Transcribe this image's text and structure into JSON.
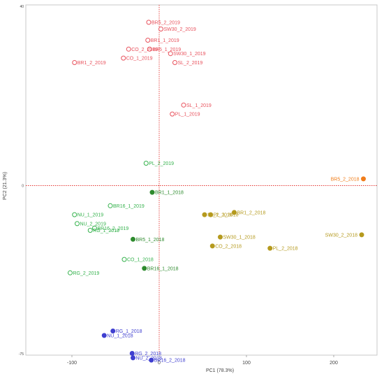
{
  "chart_data": {
    "type": "scatter",
    "title": "",
    "xlabel": "PC1 (78.3%)",
    "ylabel": "PC2 (21.3%)",
    "xlim": [
      -150,
      250
    ],
    "ylim": [
      -75,
      40
    ],
    "xticks": [
      "-100",
      "0",
      "100",
      "200"
    ],
    "yticks": [
      "40",
      "0",
      "-75"
    ],
    "reference_lines": {
      "x": 0,
      "y": 0,
      "color": "#e53935",
      "style": "dotted"
    },
    "grid": false,
    "legend": "none",
    "series": [
      {
        "color": "#e8505b",
        "marker": "open-circle",
        "points": [
          {
            "label": "BR5_2_2019",
            "x": -12,
            "y": 36.5
          },
          {
            "label": "SW30_2_2019",
            "x": 2,
            "y": 35
          },
          {
            "label": "BR1_1_2019",
            "x": -13,
            "y": 32.5
          },
          {
            "label": "CO_2_2019",
            "x": -35,
            "y": 30.5
          },
          {
            "label": "BR5_1_2019",
            "x": -11,
            "y": 30.5
          },
          {
            "label": "SW30_1_2019",
            "x": 13,
            "y": 29.5
          },
          {
            "label": "CO_1_2019",
            "x": -41,
            "y": 28.5
          },
          {
            "label": "SL_2_2019",
            "x": 18,
            "y": 27.5
          },
          {
            "label": "BR1_2_2019",
            "x": -97,
            "y": 27.5
          },
          {
            "label": "SL_1_2019",
            "x": 28,
            "y": 18
          },
          {
            "label": "PL_1_2019",
            "x": 15,
            "y": 16
          }
        ]
      },
      {
        "color": "#34b24c",
        "marker": "open-circle",
        "points": [
          {
            "label": "PL_2_2019",
            "x": -15,
            "y": 5
          },
          {
            "label": "BR16_1_2019",
            "x": -56,
            "y": -4.5
          },
          {
            "label": "NU_1_2019",
            "x": -97,
            "y": -6.5
          },
          {
            "label": "NU_2_2019",
            "x": -94,
            "y": -8.5
          },
          {
            "label": "BR16_2_2019",
            "x": -74,
            "y": -9.5
          },
          {
            "label": "RG_1_2019",
            "x": -79,
            "y": -10
          },
          {
            "label": "CO_1_2018",
            "x": -40,
            "y": -16.5
          },
          {
            "label": "RG_2_2019",
            "x": -102,
            "y": -19.5
          }
        ]
      },
      {
        "color": "#2e8b2e",
        "marker": "filled-circle",
        "points": [
          {
            "label": "BR1_1_2018",
            "x": -8,
            "y": -1.5
          },
          {
            "label": "BR5_1_2018",
            "x": -30,
            "y": -12
          },
          {
            "label": "BR16_1_2018",
            "x": -17,
            "y": -18.5
          }
        ]
      },
      {
        "color": "#b59a1e",
        "marker": "filled-circle",
        "points": [
          {
            "label": "SL_2_2018",
            "x": 52,
            "y": -6.5
          },
          {
            "label": "PL_1_2018",
            "x": 59,
            "y": -6.5
          },
          {
            "label": "BR1_2_2018",
            "x": 86,
            "y": -6
          },
          {
            "label": "SW30_1_2018",
            "x": 70,
            "y": -11.5
          },
          {
            "label": "CO_2_2018",
            "x": 61,
            "y": -13.5
          },
          {
            "label": "PL_2_2018",
            "x": 127,
            "y": -14
          },
          {
            "label": "SW30_2_2018",
            "x": 232,
            "y": -11
          }
        ]
      },
      {
        "color": "#f07d1a",
        "marker": "filled-circle",
        "points": [
          {
            "label": "BR5_2_2018",
            "x": 234,
            "y": 1.5
          }
        ]
      },
      {
        "color": "#3f3fd0",
        "marker": "filled-circle",
        "points": [
          {
            "label": "RG_1_2018",
            "x": -53,
            "y": -32.5
          },
          {
            "label": "NU_1_2018",
            "x": -63,
            "y": -33.5
          },
          {
            "label": "RG_2_2018",
            "x": -31,
            "y": -37.5
          },
          {
            "label": "NU_2_2018",
            "x": -30,
            "y": -38.5
          },
          {
            "label": "BR16_2_2018",
            "x": -9,
            "y": -39
          }
        ]
      }
    ]
  }
}
